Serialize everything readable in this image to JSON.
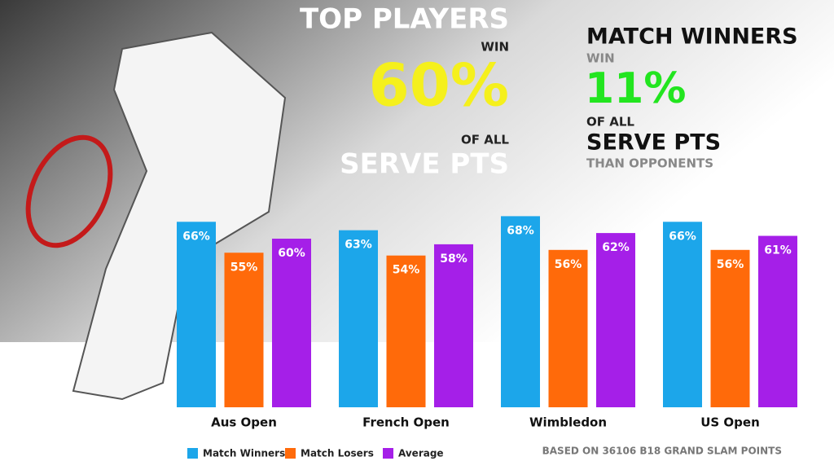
{
  "chart_data": {
    "type": "bar",
    "annotations": [
      "TOP PLAYERS",
      "WIN",
      "60%",
      "OF ALL",
      "SERVE PTS",
      "MATCH WINNERS",
      "WIN",
      "11%",
      "OF ALL",
      "SERVE PTS",
      "THAN OPPONENTS",
      "BASED ON 36106 B18 GRAND SLAM POINTS"
    ],
    "categories": [
      "Aus Open",
      "French Open",
      "Wimbledon",
      "US Open"
    ],
    "series": [
      {
        "name": "Match Winners",
        "color": "#1ca6ea",
        "values": [
          66,
          63,
          68,
          66
        ],
        "value_labels": [
          "66%",
          "63%",
          "68%",
          "66%"
        ]
      },
      {
        "name": "Match Losers",
        "color": "#ff6a0a",
        "values": [
          55,
          54,
          56,
          56
        ],
        "value_labels": [
          "55%",
          "54%",
          "56%",
          "56%"
        ]
      },
      {
        "name": "Average",
        "color": "#a51fe8",
        "values": [
          60,
          58,
          62,
          61
        ],
        "value_labels": [
          "60%",
          "58%",
          "62%",
          "61%"
        ]
      }
    ]
  }
}
